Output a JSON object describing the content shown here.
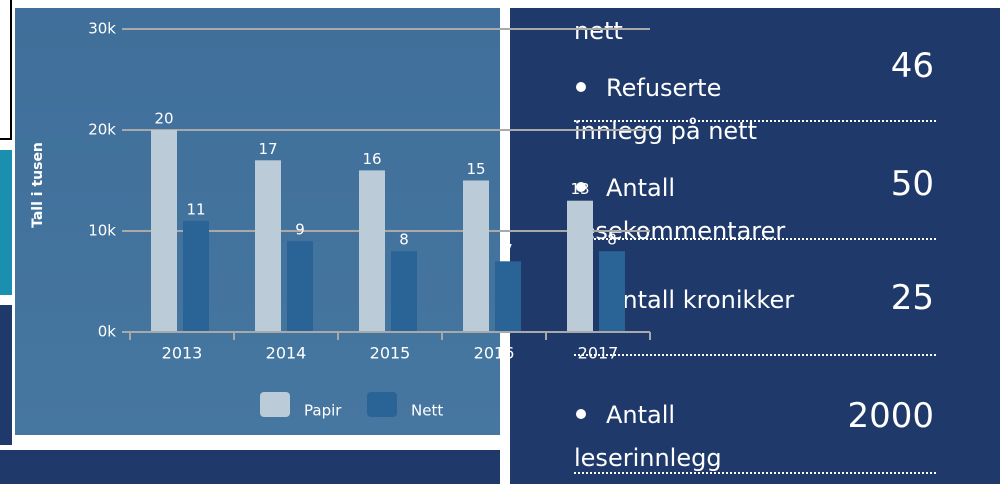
{
  "chart_data": {
    "type": "bar",
    "y_label": "Tall i tusen",
    "categories": [
      "2013",
      "2014",
      "2015",
      "2016",
      "2017"
    ],
    "series": [
      {
        "name": "Papir",
        "color": "#bccbd8",
        "values": [
          20,
          17,
          16,
          15,
          13
        ]
      },
      {
        "name": "Nett",
        "color": "#2a6395",
        "values": [
          11,
          9,
          8,
          7,
          8
        ]
      }
    ],
    "ylim": [
      0,
      30
    ],
    "yticks": [
      {
        "value": 0,
        "label": "0k"
      },
      {
        "value": 10,
        "label": "10k"
      },
      {
        "value": 20,
        "label": "20k"
      },
      {
        "value": 30,
        "label": "30k"
      }
    ],
    "grid": true,
    "legend": "bottom"
  },
  "list": {
    "fragment": "nett",
    "items": [
      {
        "label": "Refuserte innlegg på nett",
        "value": "46"
      },
      {
        "label": "Antall lesekommentarer",
        "value": "50"
      },
      {
        "label": "Antall kronikker",
        "value": "25"
      },
      {
        "label": "Antall leserinnlegg",
        "value": "2000"
      }
    ]
  }
}
